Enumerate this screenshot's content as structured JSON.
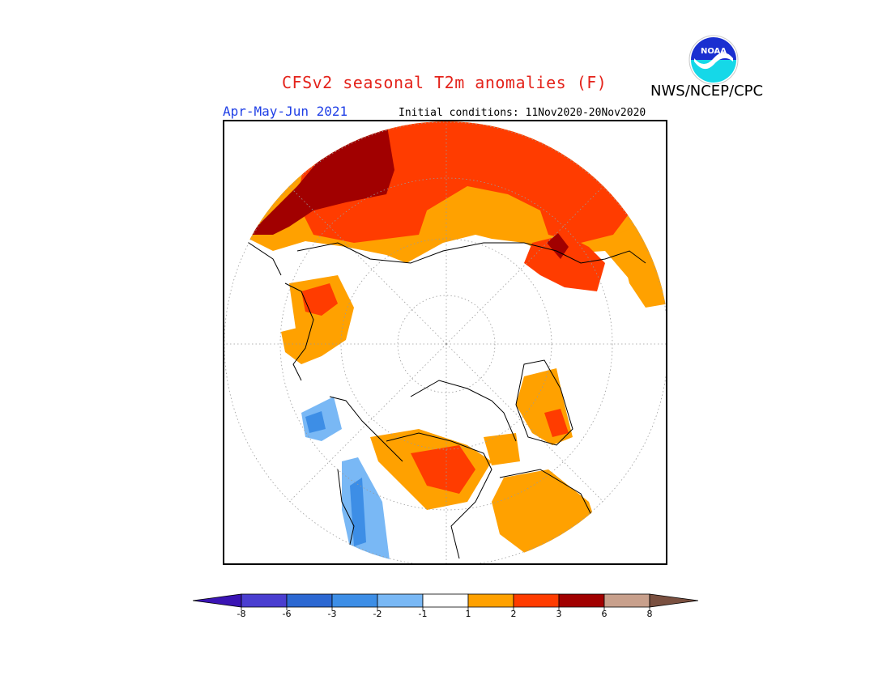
{
  "title": "CFSv2 seasonal T2m anomalies (F)",
  "agency": "NWS/NCEP/CPC",
  "logo_text": "NOAA",
  "season": "Apr-May-Jun 2021",
  "initial_conditions": "Initial conditions: 11Nov2020-20Nov2020",
  "colorbar": {
    "bins": [
      {
        "color": "#3a14b4"
      },
      {
        "color": "#4a3ed0"
      },
      {
        "color": "#2c68d2"
      },
      {
        "color": "#3d8ee6"
      },
      {
        "color": "#79b8f5"
      },
      {
        "color": "#ffffff"
      },
      {
        "color": "#ffa100"
      },
      {
        "color": "#ff3c00"
      },
      {
        "color": "#a10000"
      },
      {
        "color": "#c8a08c"
      },
      {
        "color": "#7a5040"
      }
    ],
    "labels": [
      "-8",
      "-6",
      "-3",
      "-2",
      "-1",
      "1",
      "2",
      "3",
      "6",
      "8"
    ]
  },
  "map": {
    "projection": "north-polar-stereographic",
    "colors": {
      "c1": "#ffa100",
      "c2": "#ff3c00",
      "c3": "#a10000",
      "n1": "#79b8f5",
      "n2": "#3d8ee6"
    }
  }
}
